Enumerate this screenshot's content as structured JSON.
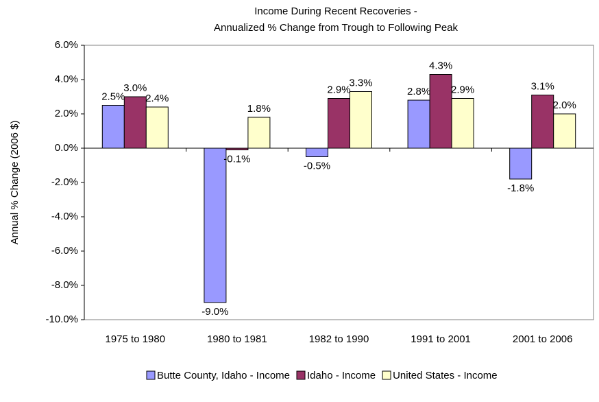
{
  "chart_data": {
    "type": "bar",
    "title": "Income During Recent Recoveries -",
    "subtitle": "Annualized % Change from Trough to Following Peak",
    "y_label": "Annual % Change (2006 $)",
    "categories": [
      "1975 to 1980",
      "1980 to 1981",
      "1982 to 1990",
      "1991 to 2001",
      "2001 to 2006"
    ],
    "series": [
      {
        "name": "Butte County, Idaho - Income",
        "color": "#9999ff",
        "values": [
          2.5,
          -9.0,
          -0.5,
          2.8,
          -1.8
        ],
        "value_labels": [
          "2.5%",
          "-9.0%",
          "-0.5%",
          "2.8%",
          "-1.8%"
        ]
      },
      {
        "name": "Idaho - Income",
        "color": "#993366",
        "values": [
          3.0,
          -0.1,
          2.9,
          4.3,
          3.1
        ],
        "value_labels": [
          "3.0%",
          "-0.1%",
          "2.9%",
          "4.3%",
          "3.1%"
        ]
      },
      {
        "name": "United States - Income",
        "color": "#ffffcc",
        "values": [
          2.4,
          1.8,
          3.3,
          2.9,
          2.0
        ],
        "value_labels": [
          "2.4%",
          "1.8%",
          "3.3%",
          "2.9%",
          "2.0%"
        ]
      }
    ],
    "ylim": [
      -10,
      6
    ],
    "yticks": [
      {
        "value": -10,
        "label": "-10.0%"
      },
      {
        "value": -8,
        "label": "-8.0%"
      },
      {
        "value": -6,
        "label": "-6.0%"
      },
      {
        "value": -4,
        "label": "-4.0%"
      },
      {
        "value": -2,
        "label": "-2.0%"
      },
      {
        "value": 0,
        "label": "0.0%"
      },
      {
        "value": 2,
        "label": "2.0%"
      },
      {
        "value": 4,
        "label": "4.0%"
      },
      {
        "value": 6,
        "label": "6.0%"
      }
    ],
    "legend": "bottom"
  }
}
